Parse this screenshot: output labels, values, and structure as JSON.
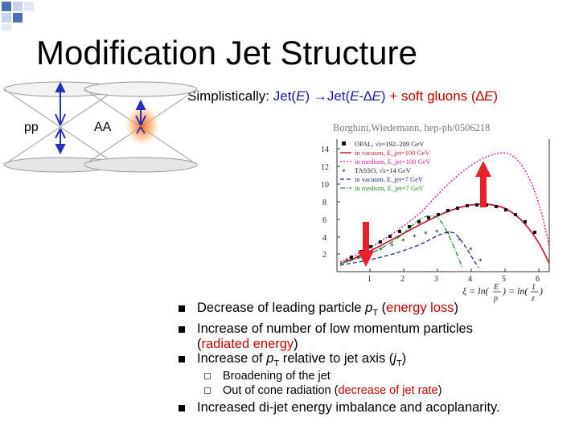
{
  "slide": {
    "title": "Modification Jet Structure",
    "subtitle": {
      "lead": "Simplistically: ",
      "jet": "Jet(",
      "e": "E",
      "arrow": ") →Jet(",
      "e2": "E",
      "minus": "-∆",
      "e3": "E",
      "close": ")",
      "plus": " + soft gluons (∆",
      "e4": "E",
      "end": ")"
    },
    "label_pp": "pp",
    "label_aa": "AA",
    "citation": "Borghini,Wiedemann, hep-ph/0506218"
  },
  "plot": {
    "y_ticks": [
      "2",
      "4",
      "6",
      "8",
      "10",
      "12",
      "14"
    ],
    "x_ticks": [
      "1",
      "2",
      "3",
      "4",
      "5",
      "6"
    ],
    "xlabel_prefix": "ξ = ln(",
    "xlabel_mid": ") = ln(",
    "xlabel_end": ")",
    "xlabel_E": "E",
    "xlabel_p": "p",
    "xlabel_one": "1",
    "xlabel_z": "z",
    "legend": [
      {
        "text": "OPAL, √s=192–209 GeV",
        "marker": "square-filled"
      },
      {
        "text": "in vacuum, E_jet=100 GeV",
        "marker": "line-solid"
      },
      {
        "text": "in medium, E_jet=100 GeV",
        "marker": "line-dotted"
      },
      {
        "text": "TASSO, √s=14 GeV",
        "marker": "star"
      },
      {
        "text": "in vacuum, E_jet=7 GeV",
        "marker": "line-dashed"
      },
      {
        "text": "in medium, E_jet=7 GeV",
        "marker": "line-dashdot"
      }
    ],
    "colors": {
      "vacuum100": "#c41e3a",
      "medium100": "#c81ea0",
      "vacuum7": "#1e2a8a",
      "medium7": "#1e8a2a",
      "arrow": "#e8202a"
    }
  },
  "bullets": [
    {
      "pre": "Decrease of leading particle ",
      "var": "p",
      "sub": "T",
      "mid": "  (",
      "red": "energy loss",
      "post": ")"
    },
    {
      "pre": "Increase of number of low momentum particles",
      "line2_pre": "(",
      "red": "radiated energy",
      "post": ")"
    },
    {
      "pre": "Increase of ",
      "var": "p",
      "sub": "T",
      "mid": " relative to jet axis (",
      "var2": "j",
      "sub2": "T",
      "post": ")"
    },
    {
      "pre": "Increased di-jet energy imbalance and acoplanarity."
    }
  ],
  "sub_bullets": [
    {
      "text": "Broadening of the jet"
    },
    {
      "pre": "Out of cone radiation (",
      "red": "decrease of jet rate",
      "post": ")"
    }
  ]
}
